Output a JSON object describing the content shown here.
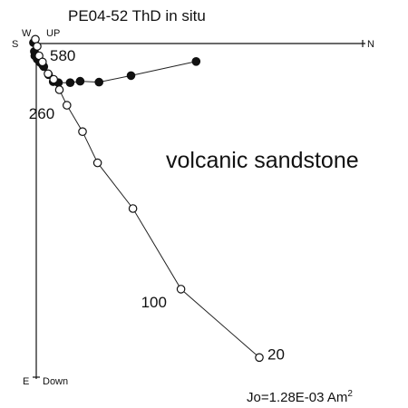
{
  "chart_data": {
    "type": "scatter",
    "title": "PE04-52 ThD in situ",
    "annotation": "volcanic sandstone",
    "intensity_label": "Jo=1.28E-03 Am",
    "intensity_unit_exponent": "2",
    "axes": {
      "north": "N",
      "south": "S",
      "west": "W",
      "up": "UP",
      "east_down": "E",
      "down": "Down"
    },
    "step_labels": [
      {
        "step": "580",
        "point_index": 1
      },
      {
        "step": "260",
        "point_index": 7
      },
      {
        "step": "100",
        "point_index": 11
      },
      {
        "step": "20",
        "point_index": 12
      }
    ],
    "series": [
      {
        "marker": "filled",
        "points": [
          [
            -0.6,
            -0.2
          ],
          [
            -0.4,
            1.7
          ],
          [
            -0.3,
            2.6
          ],
          [
            0.2,
            3.3
          ],
          [
            0.7,
            3.9
          ],
          [
            1.3,
            4.5
          ],
          [
            1.6,
            4.9
          ],
          [
            2.6,
            6.6
          ],
          [
            3.6,
            8.1
          ],
          [
            4.7,
            8.3
          ],
          [
            7.2,
            8.3
          ],
          [
            9.3,
            8.0
          ],
          [
            13.3,
            8.2
          ],
          [
            20.1,
            6.8
          ],
          [
            33.9,
            3.8
          ]
        ]
      },
      {
        "marker": "open",
        "points": [
          [
            -0.2,
            -0.9
          ],
          [
            0.2,
            0.6
          ],
          [
            0.6,
            2.6
          ],
          [
            1.3,
            3.9
          ],
          [
            2.5,
            6.4
          ],
          [
            3.7,
            7.6
          ],
          [
            4.9,
            9.8
          ],
          [
            6.5,
            13.1
          ],
          [
            9.8,
            18.7
          ],
          [
            13.0,
            25.3
          ],
          [
            20.5,
            35.0
          ],
          [
            30.7,
            52.1
          ],
          [
            47.3,
            66.6
          ]
        ]
      }
    ]
  }
}
